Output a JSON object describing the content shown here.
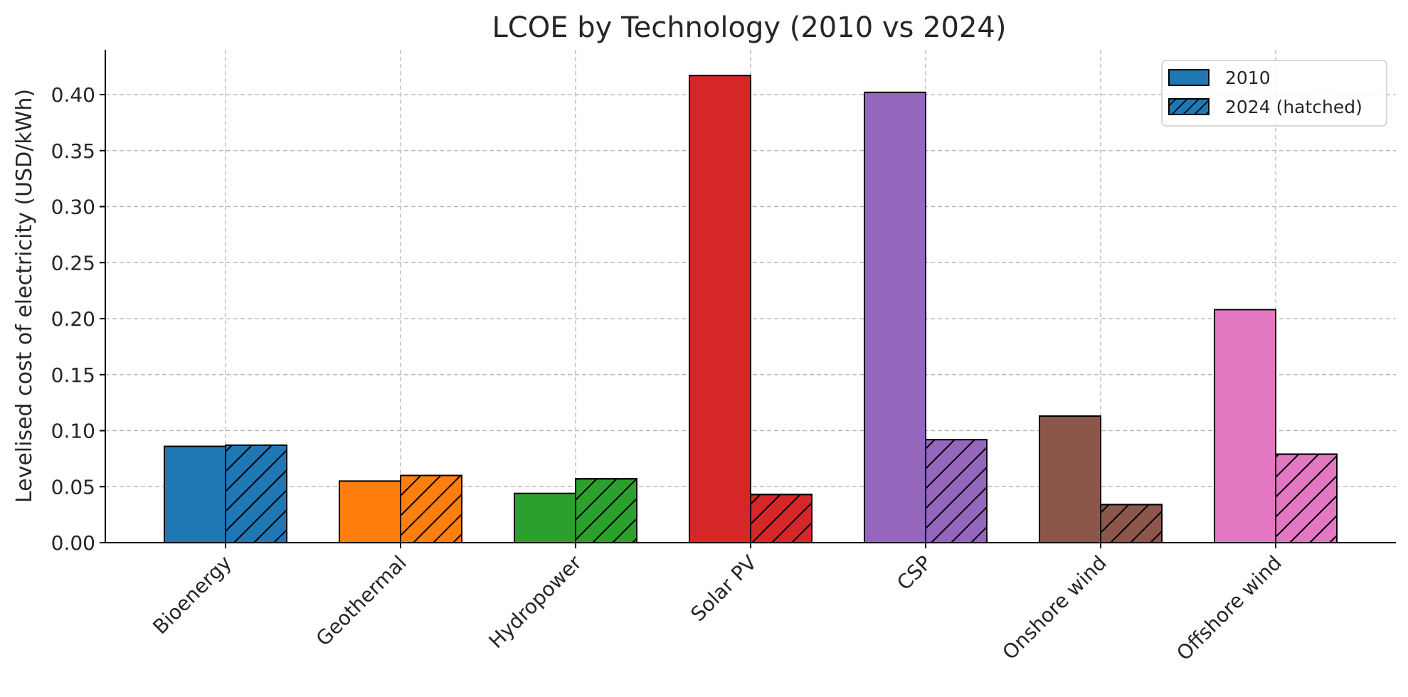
{
  "chart_data": {
    "type": "bar",
    "title": "LCOE by Technology (2010 vs 2024)",
    "xlabel": "",
    "ylabel": "Levelised cost of electricity (USD/kWh)",
    "categories": [
      "Bioenergy",
      "Geothermal",
      "Hydropower",
      "Solar PV",
      "CSP",
      "Onshore wind",
      "Offshore wind"
    ],
    "series": [
      {
        "name": "2010",
        "values": [
          0.086,
          0.055,
          0.044,
          0.417,
          0.402,
          0.113,
          0.208
        ],
        "hatched": false
      },
      {
        "name": "2024 (hatched)",
        "values": [
          0.087,
          0.06,
          0.057,
          0.043,
          0.092,
          0.034,
          0.079
        ],
        "hatched": true
      }
    ],
    "bar_colors": [
      "#1f77b4",
      "#ff7f0e",
      "#2ca02c",
      "#d62728",
      "#9467bd",
      "#8c564b",
      "#e377c2"
    ],
    "legend_color": "#1f77b4",
    "ylim": [
      0,
      0.44
    ],
    "yticks": [
      "0.00",
      "0.05",
      "0.10",
      "0.15",
      "0.20",
      "0.25",
      "0.30",
      "0.35",
      "0.40"
    ],
    "grid": true,
    "legend_position": "top-right"
  }
}
